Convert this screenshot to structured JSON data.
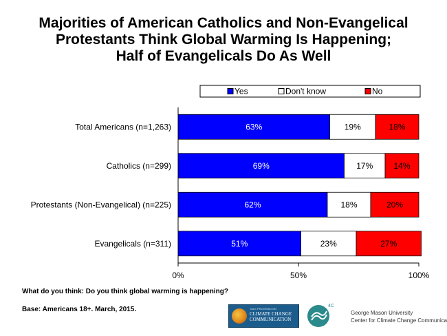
{
  "title": {
    "line1": "Majorities of American Catholics and Non-Evangelical",
    "line2": "Protestants Think Global Warming Is Happening;",
    "line3": "Half of Evangelicals Do As Well"
  },
  "chart_data": {
    "type": "bar",
    "orientation": "horizontal",
    "stacked": true,
    "categories": [
      "Total Americans (n=1,263)",
      "Catholics (n=299)",
      "Protestants (Non-Evangelical) (n=225)",
      "Evangelicals (n=311)"
    ],
    "series": [
      {
        "name": "Yes",
        "color": "#0000ff",
        "values": [
          63,
          69,
          62,
          51
        ],
        "labels": [
          "63%",
          "69%",
          "62%",
          "51%"
        ]
      },
      {
        "name": "Don't know",
        "color": "#ffffff",
        "values": [
          19,
          17,
          18,
          23
        ],
        "labels": [
          "19%",
          "17%",
          "18%",
          "23%"
        ]
      },
      {
        "name": "No",
        "color": "#ff0000",
        "values": [
          18,
          14,
          20,
          27
        ],
        "labels": [
          "18%",
          "14%",
          "20%",
          "27%"
        ]
      }
    ],
    "xlim": [
      0,
      100
    ],
    "xticks": [
      0,
      50,
      100
    ],
    "xtick_labels": [
      "0%",
      "50%",
      "100%"
    ],
    "legend": "top",
    "grid": false
  },
  "notes": {
    "question": "What do you think: Do you think global warming is happening?",
    "base": "Base: Americans 18+. March, 2015."
  },
  "logos": {
    "yale_line1": "YALE PROGRAM ON",
    "yale_line2": "CLIMATE CHANGE",
    "yale_line3": "COMMUNICATION",
    "fourc": "4C",
    "gmu_line1": "George Mason University",
    "gmu_line2": "Center for Climate Change Communication"
  }
}
